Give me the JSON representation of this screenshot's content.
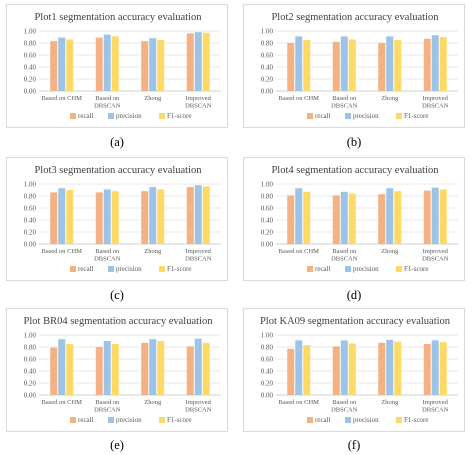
{
  "colors": {
    "recall": "#f4b183",
    "precision": "#9dc3e6",
    "f1": "#ffd966",
    "grid": "#e3e3e3",
    "axis": "#bfbfbf",
    "text": "#595959"
  },
  "chart_data": [
    {
      "type": "bar",
      "title": "Plot1 segmentation accuracy evaluation",
      "panel_label": "(a)",
      "categories": [
        [
          "Based on CHM"
        ],
        [
          "Based on",
          "DBSCAN"
        ],
        [
          "Zhong"
        ],
        [
          "Improved",
          "DBSCAN"
        ]
      ],
      "yticks": [
        "0.00",
        "0.20",
        "0.40",
        "0.60",
        "0.80",
        "1.00"
      ],
      "ylim": [
        0,
        1.0
      ],
      "series": [
        {
          "name": "recall",
          "values": [
            0.83,
            0.89,
            0.83,
            0.96
          ]
        },
        {
          "name": "precision",
          "values": [
            0.89,
            0.94,
            0.88,
            0.98
          ]
        },
        {
          "name": "F1-score",
          "values": [
            0.86,
            0.91,
            0.85,
            0.97
          ]
        }
      ]
    },
    {
      "type": "bar",
      "title": "Plot2 segmentation accuracy evaluation",
      "panel_label": "(b)",
      "categories": [
        [
          "Based on CHM"
        ],
        [
          "Based on",
          "DBSCAN"
        ],
        [
          "Zhong"
        ],
        [
          "Improved",
          "DBSCAN"
        ]
      ],
      "yticks": [
        "0.00",
        "0.20",
        "0.40",
        "0.60",
        "0.80",
        "1.00"
      ],
      "ylim": [
        0,
        1.0
      ],
      "series": [
        {
          "name": "recall",
          "values": [
            0.8,
            0.82,
            0.8,
            0.87
          ]
        },
        {
          "name": "precision",
          "values": [
            0.91,
            0.91,
            0.91,
            0.93
          ]
        },
        {
          "name": "F1-score",
          "values": [
            0.85,
            0.86,
            0.85,
            0.9
          ]
        }
      ]
    },
    {
      "type": "bar",
      "title": "Plot3 segmentation accuracy evaluation",
      "panel_label": "(c)",
      "categories": [
        [
          "Based on CHM"
        ],
        [
          "Based on",
          "DBSCAN"
        ],
        [
          "Zhong"
        ],
        [
          "Improved",
          "DBSCAN"
        ]
      ],
      "yticks": [
        "0.00",
        "0.20",
        "0.40",
        "0.60",
        "0.80",
        "1.00"
      ],
      "ylim": [
        0,
        1.0
      ],
      "series": [
        {
          "name": "recall",
          "values": [
            0.86,
            0.86,
            0.88,
            0.95
          ]
        },
        {
          "name": "precision",
          "values": [
            0.93,
            0.91,
            0.95,
            0.98
          ]
        },
        {
          "name": "F1-score",
          "values": [
            0.9,
            0.88,
            0.91,
            0.96
          ]
        }
      ]
    },
    {
      "type": "bar",
      "title": "Plot4 segmentation accuracy evaluation",
      "panel_label": "(d)",
      "categories": [
        [
          "Based on CHM"
        ],
        [
          "Based on",
          "DBSCAN"
        ],
        [
          "Zhong"
        ],
        [
          "Improved",
          "DBSCAN"
        ]
      ],
      "yticks": [
        "0.00",
        "0.20",
        "0.40",
        "0.60",
        "0.80",
        "1.00"
      ],
      "ylim": [
        0,
        1.0
      ],
      "series": [
        {
          "name": "recall",
          "values": [
            0.81,
            0.81,
            0.83,
            0.89
          ]
        },
        {
          "name": "precision",
          "values": [
            0.93,
            0.87,
            0.93,
            0.94
          ]
        },
        {
          "name": "F1-score",
          "values": [
            0.87,
            0.84,
            0.88,
            0.91
          ]
        }
      ]
    },
    {
      "type": "bar",
      "title": "Plot BR04 segmentation accuracy evaluation",
      "panel_label": "(e)",
      "categories": [
        [
          "Based on CHM"
        ],
        [
          "Based on",
          "DBSCAN"
        ],
        [
          "Zhong"
        ],
        [
          "Improved",
          "DBSCAN"
        ]
      ],
      "yticks": [
        "0.00",
        "0.20",
        "0.40",
        "0.60",
        "0.80",
        "1.00"
      ],
      "ylim": [
        0,
        1.0
      ],
      "series": [
        {
          "name": "recall",
          "values": [
            0.79,
            0.8,
            0.87,
            0.81
          ]
        },
        {
          "name": "precision",
          "values": [
            0.93,
            0.9,
            0.93,
            0.94
          ]
        },
        {
          "name": "F1-score",
          "values": [
            0.85,
            0.85,
            0.9,
            0.87
          ]
        }
      ]
    },
    {
      "type": "bar",
      "title": "Plot KA09 segmentation accuracy evaluation",
      "panel_label": "(f)",
      "categories": [
        [
          "Based on CHM"
        ],
        [
          "Based on",
          "DBSCAN"
        ],
        [
          "Zhong"
        ],
        [
          "Improved",
          "DBSCAN"
        ]
      ],
      "yticks": [
        "0.00",
        "0.20",
        "0.40",
        "0.60",
        "0.80",
        "1.00"
      ],
      "ylim": [
        0,
        1.0
      ],
      "series": [
        {
          "name": "recall",
          "values": [
            0.77,
            0.81,
            0.87,
            0.85
          ]
        },
        {
          "name": "precision",
          "values": [
            0.91,
            0.91,
            0.92,
            0.91
          ]
        },
        {
          "name": "F1-score",
          "values": [
            0.83,
            0.86,
            0.89,
            0.88
          ]
        }
      ]
    }
  ]
}
